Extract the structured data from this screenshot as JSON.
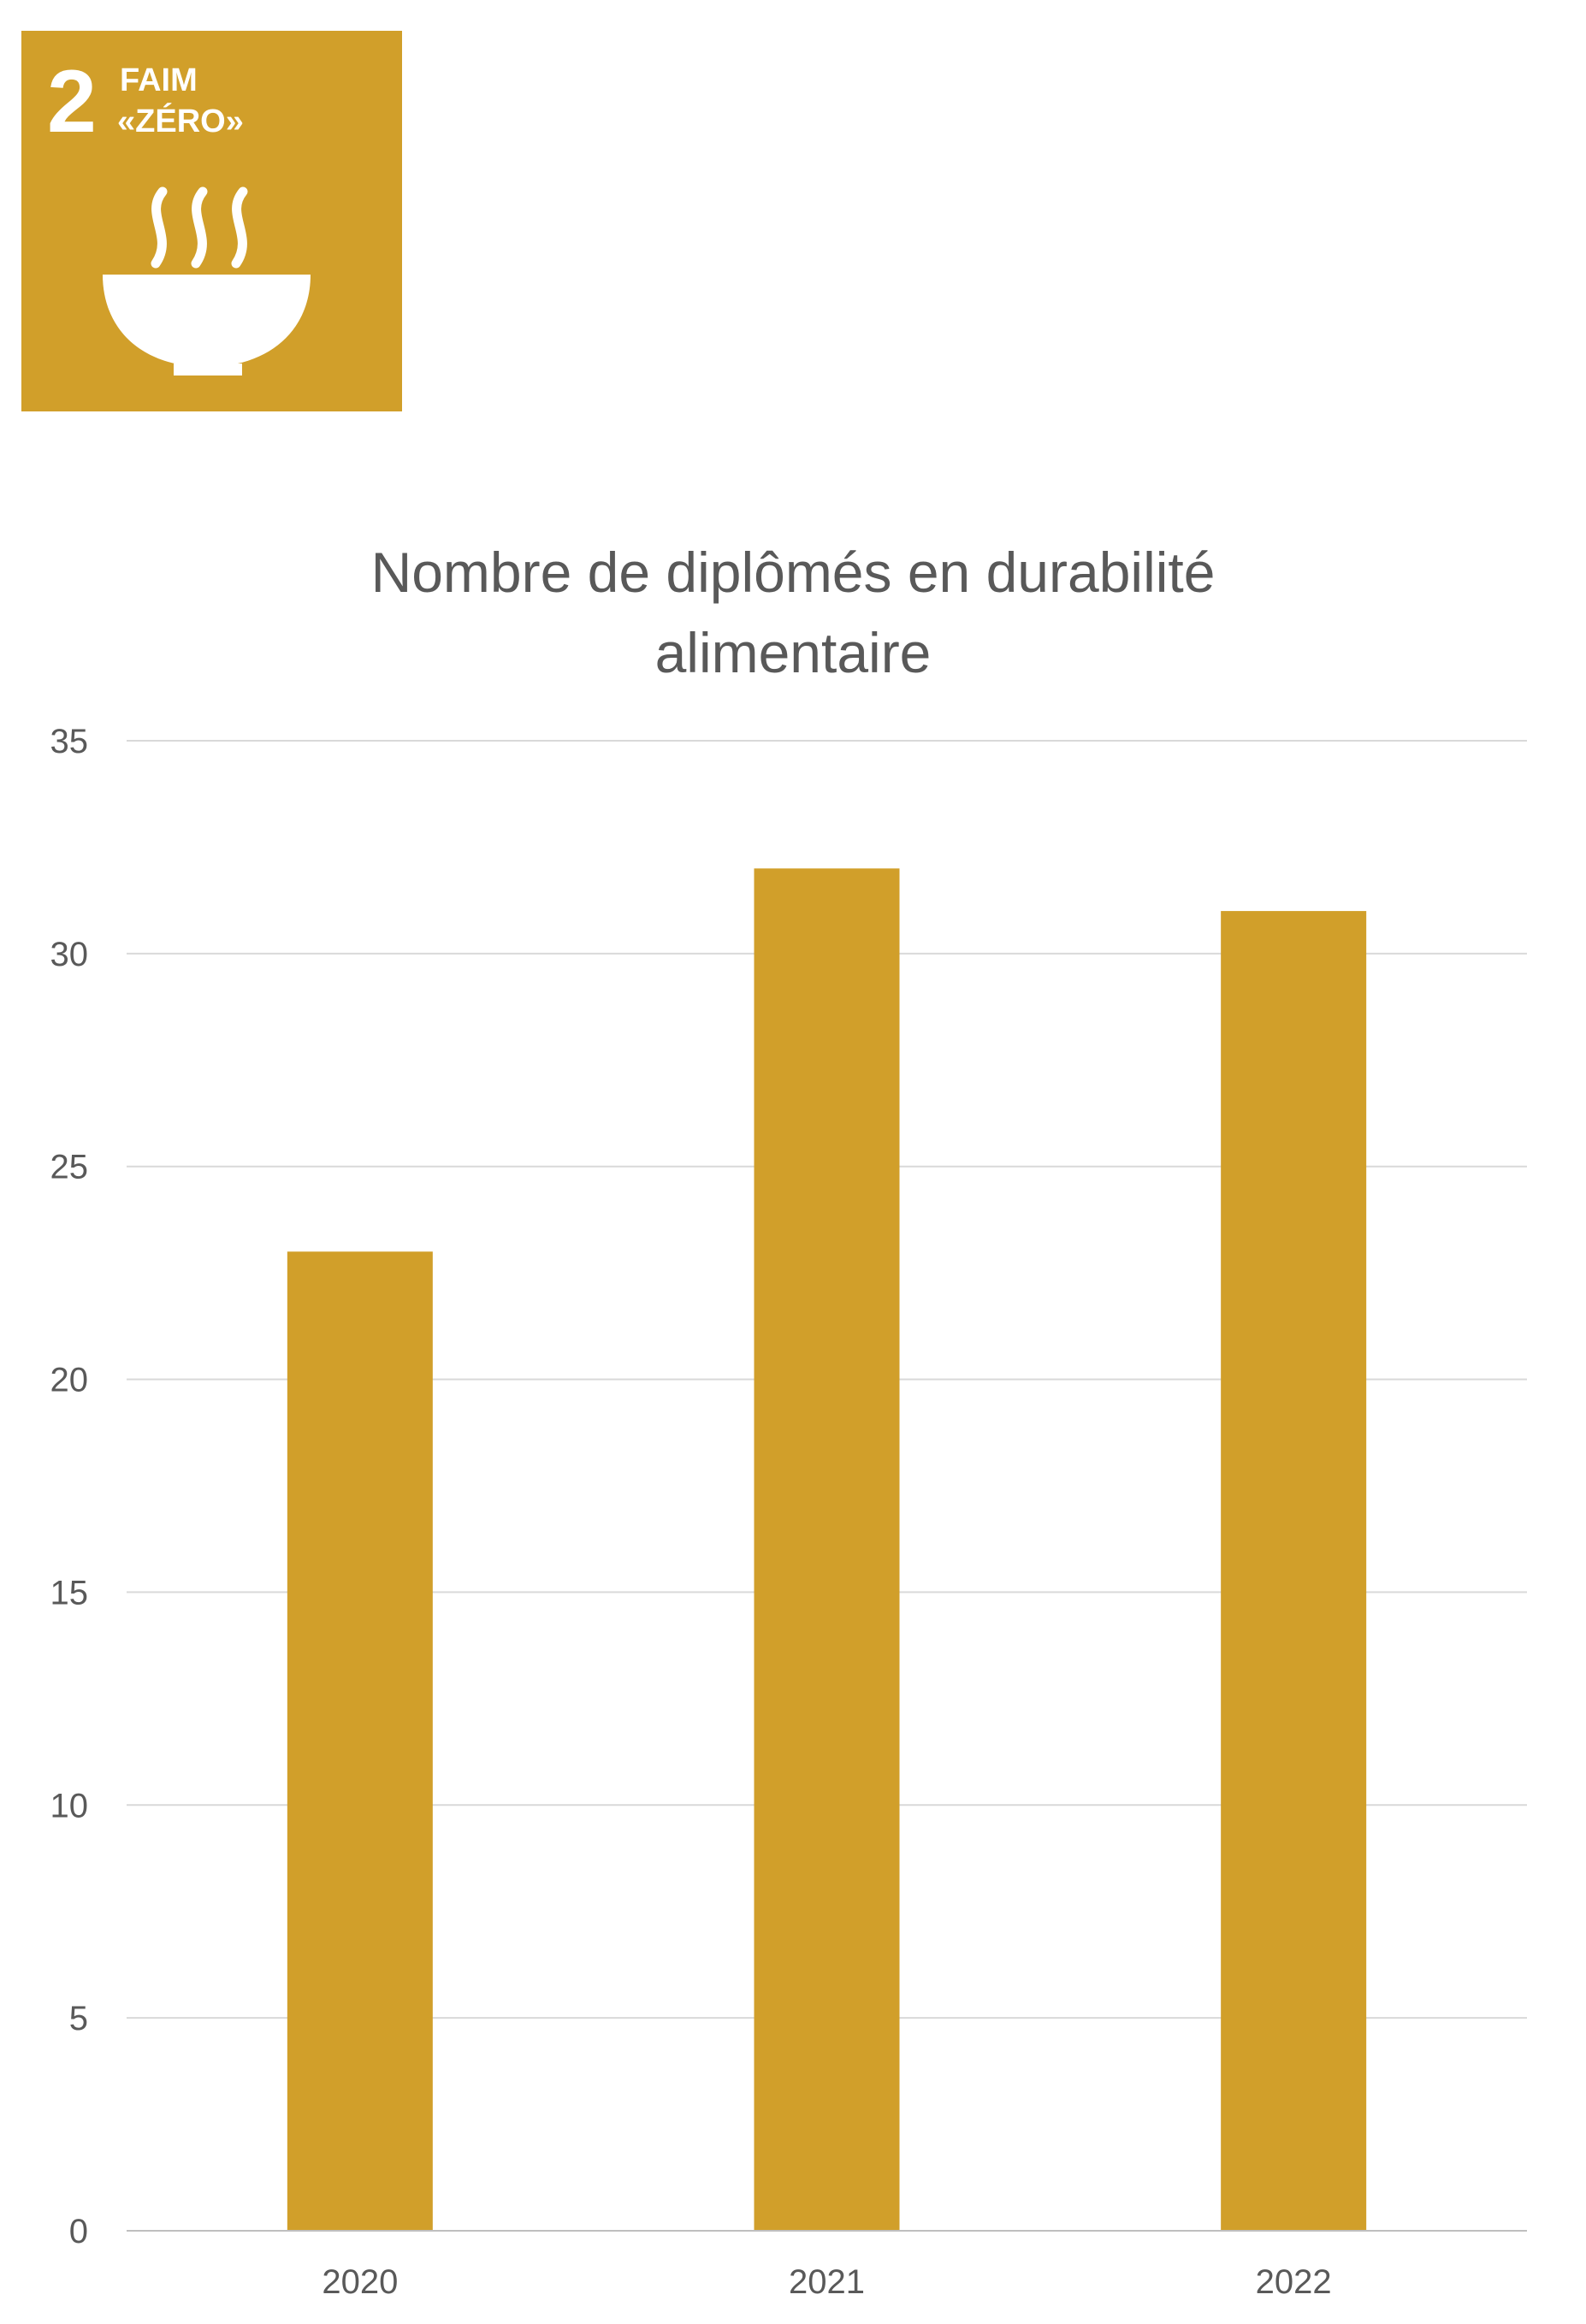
{
  "badge": {
    "number": "2",
    "line1": "FAIM",
    "line2": "«ZÉRO»",
    "icon": "steaming-bowl-icon",
    "color": "#d19f2a",
    "text_color": "#ffffff"
  },
  "chart_data": {
    "type": "bar",
    "title_lines": [
      "Nombre de diplômés en durabilité",
      "alimentaire"
    ],
    "categories": [
      "2020",
      "2021",
      "2022"
    ],
    "values": [
      23,
      32,
      31
    ],
    "ylim": [
      0,
      35
    ],
    "yticks": [
      "0",
      "5",
      "10",
      "15",
      "20",
      "25",
      "30",
      "35"
    ],
    "grid": true,
    "bar_color": "#d19f2a",
    "xlabel": "",
    "ylabel": ""
  }
}
